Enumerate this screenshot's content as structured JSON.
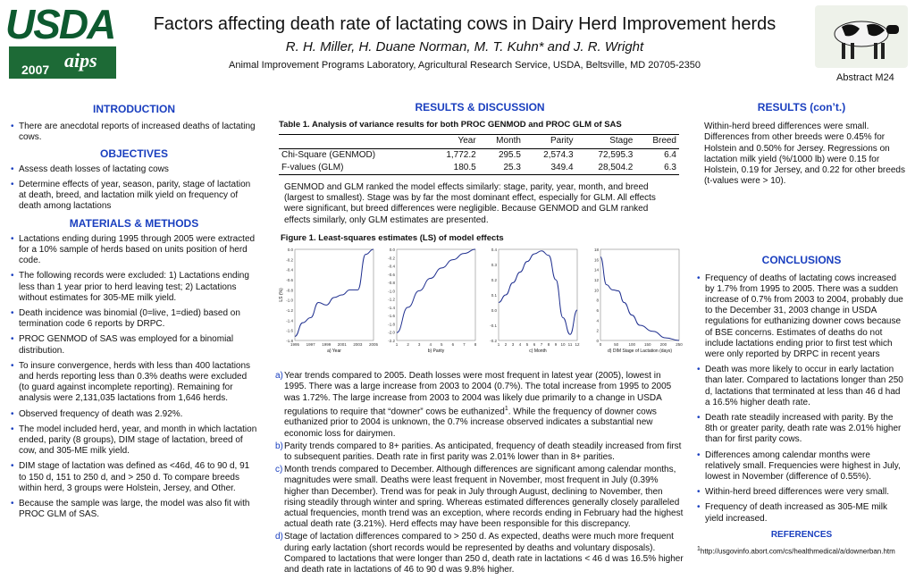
{
  "header": {
    "logo_text": "USDA",
    "year": "2007",
    "logo_mark": "aips",
    "title": "Factors affecting death rate of lactating cows in Dairy Herd Improvement herds",
    "authors": "R. H. Miller, H. Duane Norman, M. T. Kuhn* and J. R. Wright",
    "affiliation": "Animal Improvement Programs Laboratory, Agricultural Research Service, USDA, Beltsville, MD 20705-2350",
    "abstract_id": "Abstract M24"
  },
  "intro": {
    "heading": "INTRODUCTION",
    "items": [
      "There are anecdotal reports of increased deaths of lactating cows."
    ]
  },
  "objectives": {
    "heading": "OBJECTIVES",
    "items": [
      "Assess death losses of lactating cows",
      "Determine effects of year, season, parity, stage of lactation at death, breed, and lactation milk yield on frequency of death among lactations"
    ]
  },
  "methods": {
    "heading": "MATERIALS & METHODS",
    "items": [
      "Lactations ending during 1995 through 2005 were extracted for a 10% sample of herds based on units position of herd code.",
      "The following records were excluded: 1) Lactations ending less than 1 year prior to herd leaving test; 2) Lactations without estimates for 305-ME milk yield.",
      "Death incidence was binomial (0=live, 1=died) based on termination code 6 reports by DRPC.",
      "PROC GENMOD of SAS was employed for a binomial distribution.",
      "To insure convergence, herds with less than 400 lactations and herds reporting less than 0.3% deaths were excluded (to guard against incomplete reporting).  Remaining for analysis were 2,131,035 lactations from 1,646 herds.",
      "Observed frequency of death was 2.92%.",
      "The model included herd, year, and month in which lactation ended, parity (8 groups), DIM stage of lactation, breed of cow, and 305-ME milk yield.",
      "DIM stage of lactation was defined as <46d, 46 to 90 d, 91 to 150 d, 151 to 250 d, and > 250 d.  To compare breeds within herd, 3 groups were Holstein, Jersey, and Other.",
      "Because the sample was large, the model was also fit with PROC GLM of SAS."
    ]
  },
  "results": {
    "heading": "RESULTS & DISCUSSION",
    "table_caption": "Table 1. Analysis of variance results for both PROC GENMOD and PROC GLM of SAS",
    "table_headers": [
      "",
      "Year",
      "Month",
      "Parity",
      "Stage",
      "Breed"
    ],
    "table_rows": [
      [
        "Chi-Square (GENMOD)",
        "1,772.2",
        "295.5",
        "2,574.3",
        "72,595.3",
        "6.4"
      ],
      [
        "F-values (GLM)",
        "180.5",
        "25.3",
        "349.4",
        "28,504.2",
        "6.3"
      ]
    ],
    "paragraph": "GENMOD and GLM ranked the model effects similarly: stage, parity, year, month, and breed (largest to smallest).  Stage was by far the most dominant effect, especially for GLM.  All effects were significant, but breed differences were negligible.  Because GENMOD and GLM ranked effects similarly, only GLM estimates are presented.",
    "figure_caption": "Figure 1. Least-squares estimates (LS) of model effects",
    "findings": [
      {
        "label": "a)",
        "text": "Year trends compared to 2005.  Death losses were most frequent in latest year (2005), lowest in 1995.  There was a large increase from 2003 to 2004 (0.7%).  The total increase from 1995 to 2005 was 1.72%. The large increase from 2003 to 2004 was likely due primarily to a change in USDA regulations to require that “downer” cows be euthanized",
        "sup": "1",
        "tail": ".  While the frequency of downer cows euthanized prior to 2004 is unknown, the 0.7% increase observed indicates a substantial new economic loss for dairymen."
      },
      {
        "label": "b)",
        "text": "Parity trends compared to 8+ parities.  As anticipated, frequency of death steadily increased from first to subsequent parities.  Death rate in first parity was 2.01% lower than in 8+ parities.",
        "sup": "",
        "tail": ""
      },
      {
        "label": "c)",
        "text": "Month trends compared to December.  Although differences are significant among calendar months, magnitudes were small.  Deaths were least frequent in November, most frequent in July (0.39% higher than December).  Trend was for peak in July through August, declining to November, then rising steadily through winter and spring.  Whereas estimated differences generally closely paralleled actual frequencies, month trend was an exception, where records ending in February had the highest actual death rate (3.21%).  Herd effects may have been responsible for this discrepancy.",
        "sup": "",
        "tail": ""
      },
      {
        "label": "d)",
        "text": "Stage of lactation differences compared to > 250 d.  As expected, deaths were much more frequent during early lactation (short records would be represented by deaths and voluntary disposals).  Compared to lactations that were longer than 250 d, death rate in lactations < 46 d was 16.5% higher and death rate in lactations of 46 to 90 d was 9.8% higher.",
        "sup": "",
        "tail": ""
      }
    ]
  },
  "results2": {
    "heading": "RESULTS (con’t.)",
    "paragraph": "Within-herd breed differences were small.  Differences from other breeds were 0.45% for Holstein and 0.50% for Jersey.  Regressions on lactation milk yield (%/1000 lb) were 0.15 for Holstein, 0.19 for Jersey, and 0.22 for other breeds (t-values were > 10)."
  },
  "conclusions": {
    "heading": "CONCLUSIONS",
    "items": [
      "Frequency of deaths of lactating cows increased by 1.7% from 1995 to 2005.  There was a sudden increase of 0.7% from 2003 to 2004, probably due to the December 31, 2003 change in USDA regulations for euthanizing downer cows because of BSE concerns.  Estimates of deaths do not include lactations ending prior to first test which were only reported by DRPC in recent years",
      "Death was more likely to occur in early lactation than later.  Compared to lactations longer than 250 d, lactations that terminated at less than 46 d had a 16.5% higher death rate.",
      "Death rate steadily increased with parity.  By the 8th or greater parity, death rate was 2.01% higher than for first parity cows.",
      "Differences among calendar months were relatively small.  Frequencies were highest in July, lowest in November (difference of 0.55%).",
      "Within-herd breed differences were very small.",
      "Frequency of death increased as 305-ME milk yield increased."
    ]
  },
  "references": {
    "heading": "REFERENCES",
    "items": [
      "http://usgovinfo.abort.com/cs/healthmedical/a/downerban.htm"
    ]
  },
  "chart_data": [
    {
      "type": "line",
      "ylabel": "LS (%)",
      "xlabel": "a) Year",
      "x": [
        1995,
        1996,
        1997,
        1998,
        1999,
        2000,
        2001,
        2002,
        2003,
        2004,
        2005
      ],
      "x_ticks": [
        "1995",
        "1997",
        "1999",
        "2001",
        "2003",
        "2005"
      ],
      "values": [
        -1.72,
        -1.45,
        -1.35,
        -1.05,
        -1.1,
        -0.95,
        -0.9,
        -0.8,
        -0.8,
        -0.1,
        0.0
      ],
      "ylim": [
        -1.8,
        0.0
      ],
      "y_ticks": [
        "0.0",
        "-0.2",
        "-0.4",
        "-0.6",
        "-0.8",
        "-1.0",
        "-1.2",
        "-1.4",
        "-1.6",
        "-1.8"
      ]
    },
    {
      "type": "line",
      "xlabel": "b) Parity",
      "x": [
        1,
        2,
        3,
        4,
        5,
        6,
        7,
        8
      ],
      "x_ticks": [
        "1",
        "2",
        "3",
        "4",
        "5",
        "6",
        "7",
        "8"
      ],
      "values": [
        -2.01,
        -1.4,
        -1.0,
        -0.7,
        -0.45,
        -0.25,
        -0.1,
        0.0
      ],
      "ylim": [
        -2.2,
        0.0
      ],
      "y_ticks": [
        "0.0",
        "-0.2",
        "-0.4",
        "-0.6",
        "-0.8",
        "-1.0",
        "-1.2",
        "-1.4",
        "-1.6",
        "-1.8",
        "-2.0",
        "-2.2"
      ]
    },
    {
      "type": "line",
      "xlabel": "c) Month",
      "x": [
        1,
        2,
        3,
        4,
        5,
        6,
        7,
        8,
        9,
        10,
        11,
        12
      ],
      "x_ticks": [
        "1",
        "2",
        "3",
        "4",
        "5",
        "6",
        "7",
        "8",
        "9",
        "10",
        "11",
        "12"
      ],
      "values": [
        0.05,
        0.1,
        0.18,
        0.25,
        0.32,
        0.37,
        0.39,
        0.36,
        0.2,
        -0.05,
        -0.16,
        0.0
      ],
      "ylim": [
        -0.2,
        0.4
      ],
      "y_ticks": [
        "0.4",
        "0.3",
        "0.2",
        "0.1",
        "0.0",
        "-0.1",
        "-0.2"
      ]
    },
    {
      "type": "line",
      "xlabel": "d) DIM Stage of Lactation (days)",
      "x": [
        0,
        23,
        46,
        68,
        90,
        120,
        150,
        200,
        250,
        300
      ],
      "x_ticks": [
        "0",
        "50",
        "100",
        "150",
        "200",
        "250"
      ],
      "values": [
        16.5,
        11.0,
        10.0,
        9.8,
        7.5,
        5.0,
        3.0,
        1.8,
        0.5,
        0.0
      ],
      "ylim": [
        0,
        18
      ],
      "y_ticks": [
        "18",
        "16",
        "14",
        "12",
        "10",
        "8",
        "6",
        "4",
        "2",
        "0"
      ]
    }
  ]
}
